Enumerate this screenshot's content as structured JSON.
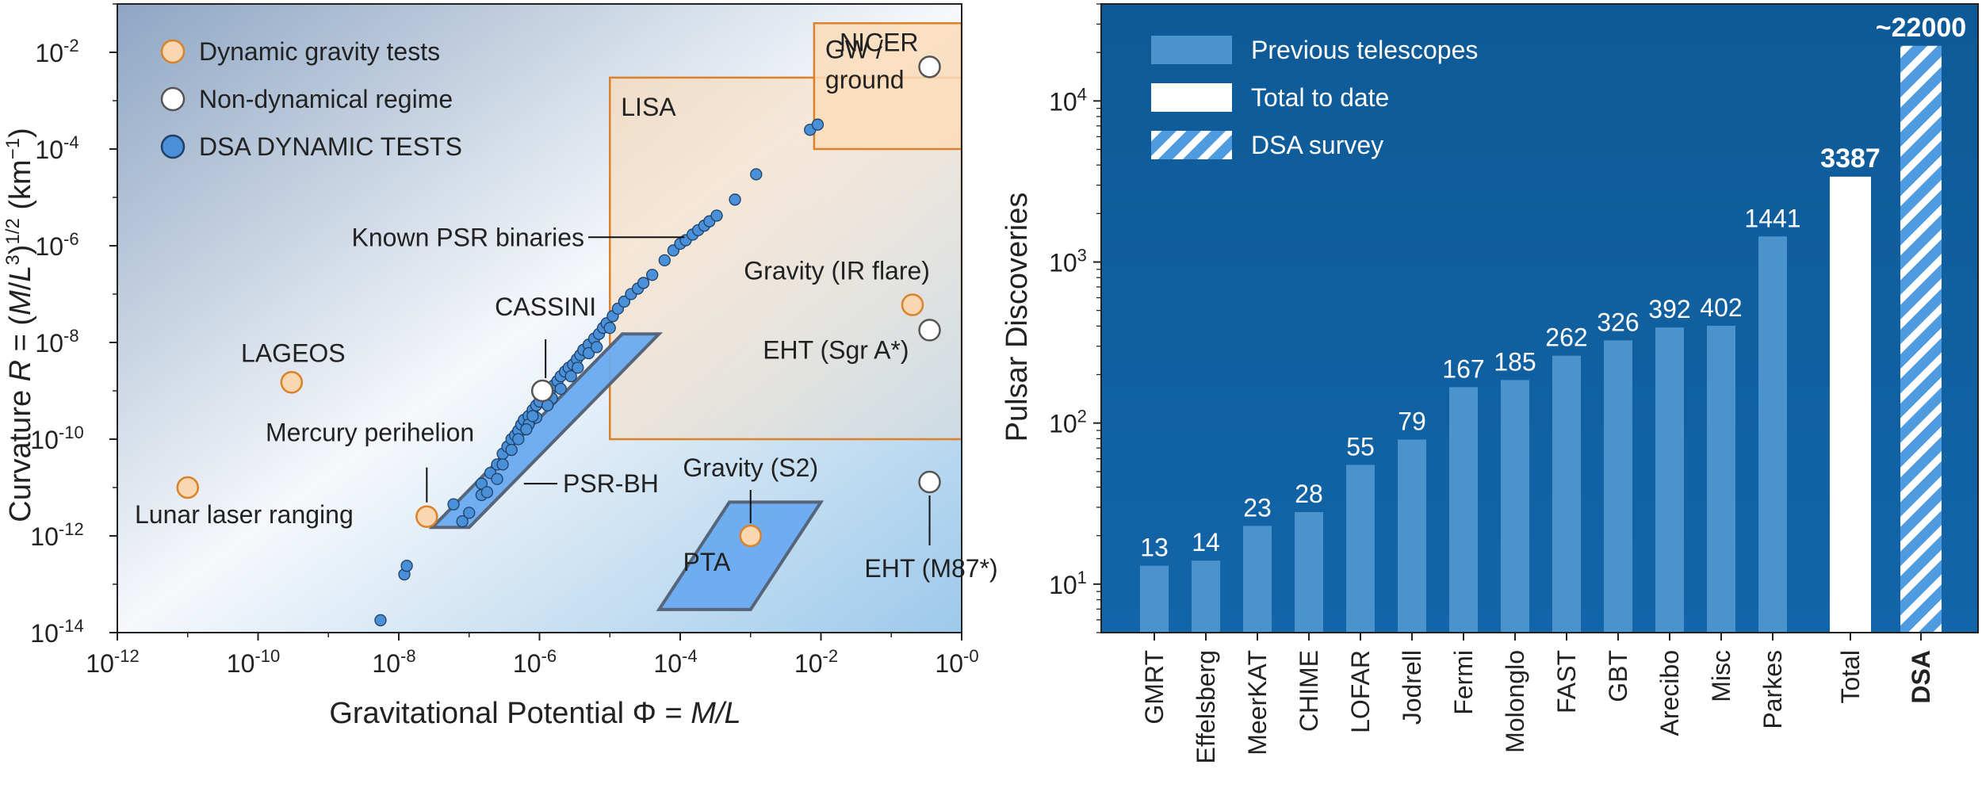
{
  "chart_data": [
    {
      "type": "scatter",
      "xlabel": "Gravitational Potential Φ = M/L",
      "ylabel": "Curvature R = (M/L³)^1/2 (km⁻¹)",
      "ylabel_parts": [
        "Curvature ",
        "R",
        " = (",
        "M",
        "/",
        "L",
        "3",
        ")",
        "1/2",
        " (km",
        "−1",
        ")"
      ],
      "xlabel_parts": [
        "Gravitational Potential Φ = ",
        "M/L"
      ],
      "xscale": "log",
      "yscale": "log",
      "xlim": [
        1e-12,
        1
      ],
      "ylim": [
        1e-14,
        0.1
      ],
      "xticks": [
        {
          "value": 1e-12,
          "base": "10",
          "exp": "-12"
        },
        {
          "value": 1e-10,
          "base": "10",
          "exp": "-10"
        },
        {
          "value": 1e-08,
          "base": "10",
          "exp": "-8"
        },
        {
          "value": 1e-06,
          "base": "10",
          "exp": "-6"
        },
        {
          "value": 0.0001,
          "base": "10",
          "exp": "-4"
        },
        {
          "value": 0.01,
          "base": "10",
          "exp": "-2"
        },
        {
          "value": 1,
          "base": "10",
          "exp": "-0"
        }
      ],
      "yticks": [
        {
          "value": 1e-14,
          "base": "10",
          "exp": "-14"
        },
        {
          "value": 1e-12,
          "base": "10",
          "exp": "-12"
        },
        {
          "value": 1e-10,
          "base": "10",
          "exp": "-10"
        },
        {
          "value": 1e-08,
          "base": "10",
          "exp": "-8"
        },
        {
          "value": 1e-06,
          "base": "10",
          "exp": "-6"
        },
        {
          "value": 0.0001,
          "base": "10",
          "exp": "-4"
        },
        {
          "value": 0.01,
          "base": "10",
          "exp": "-2"
        }
      ],
      "legend": {
        "position": "top-left",
        "entries": [
          {
            "label": "Dynamic gravity tests",
            "fill": "#f9d7b0",
            "stroke": "#d9822b"
          },
          {
            "label": "Non-dynamical regime",
            "fill": "#ffffff",
            "stroke": "#555555"
          },
          {
            "label": "DSA DYNAMIC TESTS",
            "fill": "#4a90d9",
            "stroke": "#1f3f66"
          }
        ]
      },
      "regions": [
        {
          "label": "LISA",
          "x": [
            1e-05,
            1
          ],
          "y": [
            1e-10,
            0.003
          ],
          "fill": "#f6d8b4",
          "stroke": "#d9822b"
        },
        {
          "label": "GW / ground",
          "label_lines": [
            "GW /",
            "ground"
          ],
          "x": [
            0.008,
            1
          ],
          "y": [
            0.0001,
            0.04
          ],
          "fill": "#fbdcb8",
          "stroke": "#d9822b"
        }
      ],
      "parallelograms": [
        {
          "label": "PSR-BH",
          "corners": [
            [
              3e-08,
              1.5e-12
            ],
            [
              1e-07,
              1.5e-12
            ],
            [
              5e-05,
              1.5e-08
            ],
            [
              1.5e-05,
              1.5e-08
            ]
          ],
          "fill": "#6aaaf0",
          "stroke": "#56657a"
        },
        {
          "label": "PTA",
          "corners": [
            [
              5e-05,
              3e-14
            ],
            [
              0.001,
              3e-14
            ],
            [
              0.01,
              5e-12
            ],
            [
              0.0005,
              5e-12
            ]
          ],
          "fill": "#6aaaf0",
          "stroke": "#56657a"
        }
      ],
      "dynamic_tests": [
        {
          "label": "LAGEOS",
          "x": 3e-10,
          "y": 1.5e-09
        },
        {
          "label": "Lunar laser ranging",
          "x": 1e-11,
          "y": 1e-11
        },
        {
          "label": "Mercury perihelion",
          "x": 2.5e-08,
          "y": 2.5e-12
        },
        {
          "label": "Gravity (S2)",
          "x": 0.001,
          "y": 1e-12
        },
        {
          "label": "Gravity (IR flare)",
          "x": 0.2,
          "y": 6e-08
        }
      ],
      "non_dynamical": [
        {
          "label": "CASSINI",
          "x": 1.1e-06,
          "y": 1e-09
        },
        {
          "label": "NICER",
          "x": 0.35,
          "y": 0.005
        },
        {
          "label": "EHT (Sgr A*)",
          "label_html": "EHT (Sgr A*)",
          "x": 0.35,
          "y": 1.8e-08
        },
        {
          "label": "EHT (M87*)",
          "x": 0.35,
          "y": 1.3e-11
        }
      ],
      "annotations": [
        {
          "label": "Known PSR binaries"
        },
        {
          "label": "PSR-BH"
        },
        {
          "label": "PTA"
        },
        {
          "label": "LISA"
        }
      ],
      "dsa_tests": {
        "description": "Known PSR binaries",
        "points": [
          [
            5.5e-09,
            1.8e-14
          ],
          [
            1.2e-08,
            1.6e-13
          ],
          [
            1.3e-08,
            2.4e-13
          ],
          [
            6e-08,
            4.5e-12
          ],
          [
            8e-08,
            2e-12
          ],
          [
            1e-07,
            3e-12
          ],
          [
            1.5e-07,
            1.2e-11
          ],
          [
            2e-07,
            2e-11
          ],
          [
            2.5e-07,
            3e-11
          ],
          [
            3e-07,
            5e-11
          ],
          [
            3.5e-07,
            7e-11
          ],
          [
            4e-07,
            1e-10
          ],
          [
            4.5e-07,
            1.2e-10
          ],
          [
            5e-07,
            1.5e-10
          ],
          [
            5.5e-07,
            2e-10
          ],
          [
            6e-07,
            2.5e-10
          ],
          [
            7e-07,
            3e-10
          ],
          [
            8e-07,
            4e-10
          ],
          [
            9e-07,
            5e-10
          ],
          [
            1e-06,
            6e-10
          ],
          [
            1.2e-06,
            8e-10
          ],
          [
            1.4e-06,
            1e-09
          ],
          [
            1.6e-06,
            1.3e-09
          ],
          [
            1.8e-06,
            1.6e-09
          ],
          [
            2e-06,
            2e-09
          ],
          [
            2.3e-06,
            2.5e-09
          ],
          [
            2.6e-06,
            3e-09
          ],
          [
            3e-06,
            3.5e-09
          ],
          [
            3.4e-06,
            4.5e-09
          ],
          [
            3.8e-06,
            5.5e-09
          ],
          [
            4.2e-06,
            7e-09
          ],
          [
            5e-06,
            9e-09
          ],
          [
            6e-06,
            1.2e-08
          ],
          [
            7e-06,
            1.5e-08
          ],
          [
            8e-06,
            2e-08
          ],
          [
            9e-06,
            2.5e-08
          ],
          [
            1.1e-05,
            3.5e-08
          ],
          [
            1.3e-05,
            5e-08
          ],
          [
            1.6e-05,
            7e-08
          ],
          [
            2e-05,
            1e-07
          ],
          [
            2.5e-05,
            1.3e-07
          ],
          [
            3e-05,
            1.7e-07
          ],
          [
            4e-05,
            2.5e-07
          ],
          [
            6e-05,
            5e-07
          ],
          [
            8e-05,
            8e-07
          ],
          [
            0.0001,
            1.1e-06
          ],
          [
            0.00012,
            1.3e-06
          ],
          [
            0.00015,
            1.7e-06
          ],
          [
            0.00018,
            2.1e-06
          ],
          [
            0.00022,
            2.6e-06
          ],
          [
            0.00026,
            3.2e-06
          ],
          [
            0.00033,
            4.2e-06
          ],
          [
            0.0006,
            9e-06
          ],
          [
            0.0012,
            3e-05
          ],
          [
            0.007,
            0.00025
          ],
          [
            0.009,
            0.00032
          ],
          [
            2.5e-07,
            1.5e-11
          ],
          [
            4e-07,
            6e-11
          ],
          [
            7e-07,
            2e-10
          ],
          [
            1.5e-06,
            7e-10
          ],
          [
            2.8e-06,
            2e-09
          ],
          [
            5e-06,
            6e-09
          ],
          [
            1e-05,
            2e-08
          ],
          [
            5e-07,
            1e-10
          ],
          [
            6.5e-07,
            1.6e-10
          ],
          [
            9e-07,
            2.8e-10
          ],
          [
            1.3e-06,
            5e-10
          ],
          [
            2e-06,
            1.1e-09
          ],
          [
            3.5e-06,
            3e-09
          ],
          [
            6.5e-06,
            8e-09
          ],
          [
            1.5e-07,
            7e-12
          ],
          [
            1.8e-07,
            8e-12
          ],
          [
            3e-07,
            3e-11
          ],
          [
            8e-07,
            3e-10
          ]
        ]
      }
    },
    {
      "type": "bar",
      "ylabel": "Pulsar Discoveries",
      "yscale": "log",
      "ylim": [
        5,
        40000
      ],
      "yticks": [
        {
          "value": 10,
          "base": "10",
          "exp": "1"
        },
        {
          "value": 100,
          "base": "10",
          "exp": "2"
        },
        {
          "value": 1000,
          "base": "10",
          "exp": "3"
        },
        {
          "value": 10000,
          "base": "10",
          "exp": "4"
        }
      ],
      "legend": {
        "position": "top-left",
        "entries": [
          {
            "label": "Previous telescopes",
            "style": "prev"
          },
          {
            "label": "Total to date",
            "style": "total"
          },
          {
            "label": "DSA survey",
            "style": "dsa"
          }
        ]
      },
      "categories": [
        "GMRT",
        "Effelsberg",
        "MeerKAT",
        "CHIME",
        "LOFAR",
        "Jodrell",
        "Fermi",
        "Molonglo",
        "FAST",
        "GBT",
        "Arecibo",
        "Misc",
        "Parkes",
        "Total",
        "DSA"
      ],
      "values": [
        13,
        14,
        23,
        28,
        55,
        79,
        167,
        185,
        262,
        326,
        392,
        402,
        1441,
        3387,
        22000
      ],
      "labels": [
        "13",
        "14",
        "23",
        "28",
        "55",
        "79",
        "167",
        "185",
        "262",
        "326",
        "392",
        "402",
        "1441",
        "3387",
        "~22000"
      ],
      "styles": [
        "prev",
        "prev",
        "prev",
        "prev",
        "prev",
        "prev",
        "prev",
        "prev",
        "prev",
        "prev",
        "prev",
        "prev",
        "prev",
        "total",
        "dsa"
      ],
      "colors": {
        "background": "#0f5f9e",
        "prev": "#4b93cc",
        "total": "#ffffff",
        "dsa": "#4f9be0"
      }
    }
  ]
}
